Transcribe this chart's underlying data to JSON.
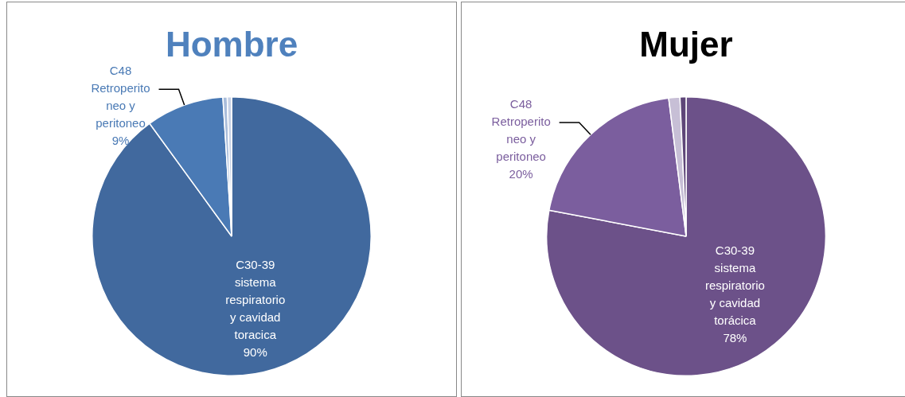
{
  "chart_data": [
    {
      "type": "pie",
      "title": "Hombre",
      "categories": [
        "C30-39 sistema respiratorio y cavidad toracica",
        "C48 Retroperitoneo y peritoneo",
        null,
        null
      ],
      "values": [
        90,
        9,
        0.5,
        0.5
      ],
      "colors": [
        "#41699e",
        "#4a7ab5",
        "#a9bddb",
        "#c7d2e6"
      ],
      "value_labels": [
        "90%",
        "9%",
        null,
        null
      ]
    },
    {
      "type": "pie",
      "title": "Mujer",
      "categories": [
        "C30-39 sistema respiratorio y cavidad torácica",
        "C48 Retroperitoneo y peritoneo",
        null,
        null
      ],
      "values": [
        78,
        20,
        1.3,
        0.7
      ],
      "colors": [
        "#6c5189",
        "#7b5e9e",
        "#c7bfd6",
        "#5e4678"
      ],
      "value_labels": [
        "78%",
        "20%",
        null,
        null
      ]
    }
  ]
}
